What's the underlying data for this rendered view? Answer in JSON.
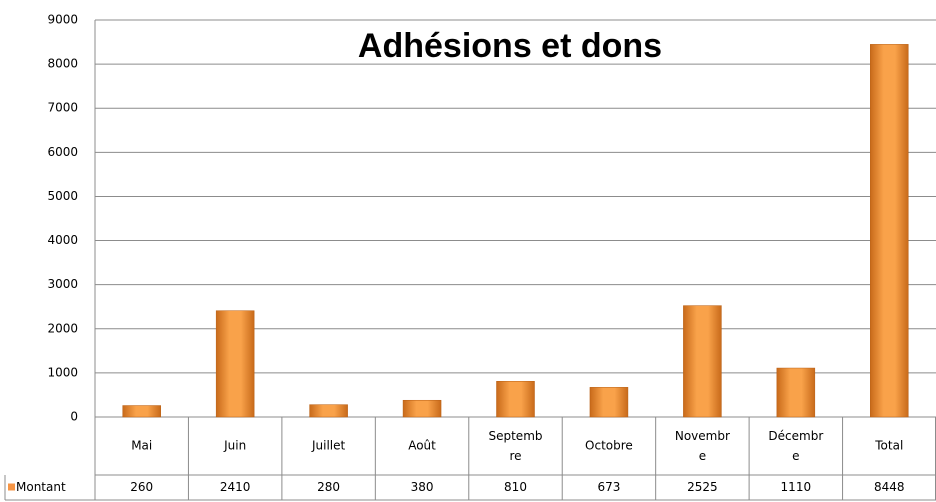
{
  "chart_data": {
    "type": "bar",
    "title": "Adhésions et dons",
    "categories": [
      "Mai",
      "Juin",
      "Juillet",
      "Août",
      "Septembre",
      "Octobre",
      "Novembre",
      "Décembre",
      "Total"
    ],
    "series": [
      {
        "name": "Montant",
        "color": "#f79646",
        "values": [
          260,
          2410,
          280,
          380,
          810,
          673,
          2525,
          1110,
          8448
        ]
      }
    ],
    "ylim": [
      0,
      9000
    ],
    "yticks": [
      0,
      1000,
      2000,
      3000,
      4000,
      5000,
      6000,
      7000,
      8000,
      9000
    ],
    "grid": true
  }
}
